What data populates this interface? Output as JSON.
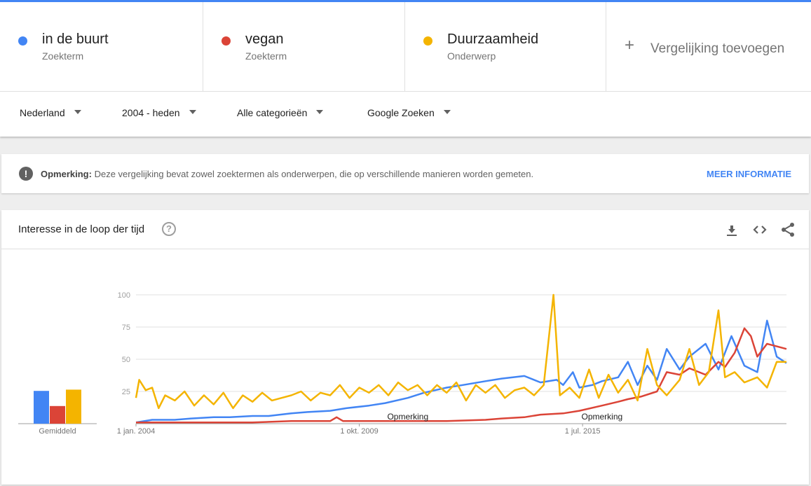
{
  "search_terms": [
    {
      "name": "in de buurt",
      "kind": "Zoekterm",
      "color": "#4285f4"
    },
    {
      "name": "vegan",
      "kind": "Zoekterm",
      "color": "#db4437"
    },
    {
      "name": "Duurzaamheid",
      "kind": "Onderwerp",
      "color": "#f4b400"
    }
  ],
  "add_comparison": {
    "label": "Vergelijking toevoegen"
  },
  "filters": {
    "region": "Nederland",
    "period": "2004 - heden",
    "category": "Alle categorieën",
    "property": "Google Zoeken"
  },
  "notice": {
    "label": "Opmerking:",
    "text": "Deze vergelijking bevat zowel zoektermen als onderwerpen, die op verschillende manieren worden gemeten.",
    "link": "MEER INFORMATIE"
  },
  "panel": {
    "title": "Interesse in de loop der tijd"
  },
  "chart_data": {
    "type": "line",
    "x_ticks": [
      "1 jan. 2004",
      "1 okt. 2009",
      "1 jul. 2015"
    ],
    "x_range": [
      "2004-01",
      "2020-10"
    ],
    "ylim": [
      0,
      100
    ],
    "y_ticks": [
      25,
      50,
      75,
      100
    ],
    "grid": true,
    "annotations": [
      {
        "label": "Opmerking",
        "date": "2011-01"
      },
      {
        "label": "Opmerking",
        "date": "2016-01"
      }
    ],
    "average_label": "Gemiddeld",
    "averages": [
      {
        "series": "in de buurt",
        "value": 26
      },
      {
        "series": "vegan",
        "value": 14
      },
      {
        "series": "Duurzaamheid",
        "value": 27
      }
    ],
    "series": [
      {
        "name": "in de buurt",
        "color": "#4285f4",
        "points": [
          [
            "2004-01",
            1
          ],
          [
            "2004-06",
            3
          ],
          [
            "2005-01",
            3
          ],
          [
            "2005-06",
            4
          ],
          [
            "2006-01",
            5
          ],
          [
            "2006-06",
            5
          ],
          [
            "2007-01",
            6
          ],
          [
            "2007-06",
            6
          ],
          [
            "2008-01",
            8
          ],
          [
            "2008-06",
            9
          ],
          [
            "2009-01",
            10
          ],
          [
            "2009-06",
            12
          ],
          [
            "2010-01",
            14
          ],
          [
            "2010-06",
            16
          ],
          [
            "2011-01",
            20
          ],
          [
            "2011-06",
            24
          ],
          [
            "2012-01",
            28
          ],
          [
            "2012-06",
            30
          ],
          [
            "2013-01",
            33
          ],
          [
            "2013-06",
            35
          ],
          [
            "2014-01",
            37
          ],
          [
            "2014-06",
            32
          ],
          [
            "2014-11",
            34
          ],
          [
            "2015-01",
            30
          ],
          [
            "2015-04",
            40
          ],
          [
            "2015-06",
            28
          ],
          [
            "2015-10",
            30
          ],
          [
            "2016-01",
            33
          ],
          [
            "2016-06",
            36
          ],
          [
            "2016-09",
            48
          ],
          [
            "2016-12",
            30
          ],
          [
            "2017-03",
            45
          ],
          [
            "2017-06",
            34
          ],
          [
            "2017-09",
            58
          ],
          [
            "2018-01",
            42
          ],
          [
            "2018-04",
            52
          ],
          [
            "2018-09",
            62
          ],
          [
            "2019-01",
            42
          ],
          [
            "2019-05",
            68
          ],
          [
            "2019-09",
            45
          ],
          [
            "2020-01",
            40
          ],
          [
            "2020-04",
            80
          ],
          [
            "2020-07",
            52
          ],
          [
            "2020-10",
            47
          ]
        ]
      },
      {
        "name": "vegan",
        "color": "#db4437",
        "points": [
          [
            "2004-01",
            1
          ],
          [
            "2005-01",
            1
          ],
          [
            "2006-01",
            1
          ],
          [
            "2007-01",
            1
          ],
          [
            "2008-01",
            2
          ],
          [
            "2009-01",
            2
          ],
          [
            "2009-03",
            5
          ],
          [
            "2009-05",
            2
          ],
          [
            "2010-01",
            2
          ],
          [
            "2011-01",
            2
          ],
          [
            "2012-01",
            2
          ],
          [
            "2013-01",
            3
          ],
          [
            "2013-06",
            4
          ],
          [
            "2014-01",
            5
          ],
          [
            "2014-06",
            7
          ],
          [
            "2015-01",
            8
          ],
          [
            "2015-06",
            10
          ],
          [
            "2016-01",
            14
          ],
          [
            "2016-06",
            17
          ],
          [
            "2016-09",
            19
          ],
          [
            "2017-01",
            21
          ],
          [
            "2017-06",
            25
          ],
          [
            "2017-09",
            40
          ],
          [
            "2018-01",
            38
          ],
          [
            "2018-04",
            43
          ],
          [
            "2018-09",
            38
          ],
          [
            "2019-01",
            48
          ],
          [
            "2019-03",
            44
          ],
          [
            "2019-06",
            55
          ],
          [
            "2019-09",
            74
          ],
          [
            "2019-11",
            68
          ],
          [
            "2020-01",
            52
          ],
          [
            "2020-04",
            62
          ],
          [
            "2020-07",
            60
          ],
          [
            "2020-10",
            58
          ]
        ]
      },
      {
        "name": "Duurzaamheid",
        "color": "#f4b400",
        "points": [
          [
            "2004-01",
            20
          ],
          [
            "2004-02",
            34
          ],
          [
            "2004-04",
            26
          ],
          [
            "2004-06",
            28
          ],
          [
            "2004-08",
            12
          ],
          [
            "2004-10",
            22
          ],
          [
            "2005-01",
            18
          ],
          [
            "2005-04",
            25
          ],
          [
            "2005-07",
            14
          ],
          [
            "2005-10",
            22
          ],
          [
            "2006-01",
            15
          ],
          [
            "2006-04",
            24
          ],
          [
            "2006-07",
            12
          ],
          [
            "2006-10",
            22
          ],
          [
            "2007-01",
            17
          ],
          [
            "2007-04",
            24
          ],
          [
            "2007-07",
            18
          ],
          [
            "2007-10",
            20
          ],
          [
            "2008-01",
            22
          ],
          [
            "2008-04",
            25
          ],
          [
            "2008-07",
            18
          ],
          [
            "2008-10",
            24
          ],
          [
            "2009-01",
            22
          ],
          [
            "2009-04",
            30
          ],
          [
            "2009-07",
            20
          ],
          [
            "2009-10",
            28
          ],
          [
            "2010-01",
            24
          ],
          [
            "2010-04",
            30
          ],
          [
            "2010-07",
            22
          ],
          [
            "2010-10",
            32
          ],
          [
            "2011-01",
            26
          ],
          [
            "2011-04",
            30
          ],
          [
            "2011-07",
            22
          ],
          [
            "2011-10",
            30
          ],
          [
            "2012-01",
            24
          ],
          [
            "2012-04",
            32
          ],
          [
            "2012-07",
            18
          ],
          [
            "2012-10",
            30
          ],
          [
            "2013-01",
            24
          ],
          [
            "2013-04",
            30
          ],
          [
            "2013-07",
            20
          ],
          [
            "2013-10",
            26
          ],
          [
            "2014-01",
            28
          ],
          [
            "2014-04",
            22
          ],
          [
            "2014-07",
            30
          ],
          [
            "2014-10",
            100
          ],
          [
            "2014-12",
            22
          ],
          [
            "2015-03",
            28
          ],
          [
            "2015-06",
            20
          ],
          [
            "2015-09",
            42
          ],
          [
            "2015-12",
            20
          ],
          [
            "2016-03",
            38
          ],
          [
            "2016-06",
            24
          ],
          [
            "2016-09",
            34
          ],
          [
            "2016-12",
            18
          ],
          [
            "2017-03",
            58
          ],
          [
            "2017-06",
            30
          ],
          [
            "2017-09",
            22
          ],
          [
            "2018-01",
            34
          ],
          [
            "2018-04",
            58
          ],
          [
            "2018-07",
            30
          ],
          [
            "2018-10",
            40
          ],
          [
            "2019-01",
            88
          ],
          [
            "2019-03",
            36
          ],
          [
            "2019-06",
            40
          ],
          [
            "2019-09",
            32
          ],
          [
            "2020-01",
            36
          ],
          [
            "2020-04",
            28
          ],
          [
            "2020-07",
            48
          ],
          [
            "2020-10",
            48
          ]
        ]
      }
    ]
  }
}
